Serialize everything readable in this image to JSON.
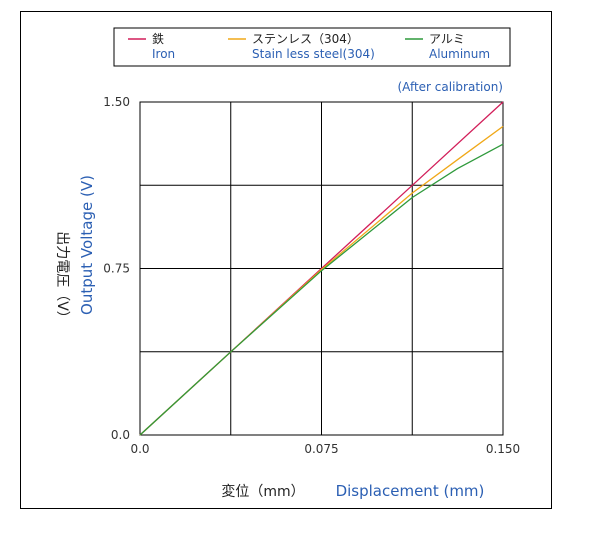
{
  "chart_data": {
    "type": "line",
    "annotation": "(After calibration)",
    "xlabel_jp": "変位（mm）",
    "xlabel_en": "Displacement (mm)",
    "ylabel_jp": "出力電圧（V）",
    "ylabel_en": "Output Voltage (V)",
    "xlim": [
      0,
      0.15
    ],
    "ylim": [
      0,
      1.5
    ],
    "x_ticks": [
      "0.0",
      "0.075",
      "0.150"
    ],
    "y_ticks": [
      "0.0",
      "0.75",
      "1.50"
    ],
    "x_tick_values": [
      0,
      0.075,
      0.15
    ],
    "y_tick_values": [
      0,
      0.75,
      1.5
    ],
    "grid": true,
    "legend_position": "top",
    "series": [
      {
        "name": "鉄",
        "name_en": "Iron",
        "color": "#d21f5a",
        "x": [
          0,
          0.0375,
          0.075,
          0.1125,
          0.15
        ],
        "y": [
          0,
          0.375,
          0.75,
          1.125,
          1.5
        ]
      },
      {
        "name": "ステンレス（304）",
        "name_en": "Stain less steel(304)",
        "color": "#f0a818",
        "x": [
          0,
          0.0375,
          0.075,
          0.1125,
          0.1312,
          0.15
        ],
        "y": [
          0,
          0.375,
          0.745,
          1.09,
          1.24,
          1.39
        ]
      },
      {
        "name": "アルミ",
        "name_en": "Aluminum",
        "color": "#2f9a3c",
        "x": [
          0,
          0.0375,
          0.075,
          0.1125,
          0.1312,
          0.15
        ],
        "y": [
          0,
          0.375,
          0.74,
          1.07,
          1.2,
          1.31
        ]
      }
    ]
  }
}
